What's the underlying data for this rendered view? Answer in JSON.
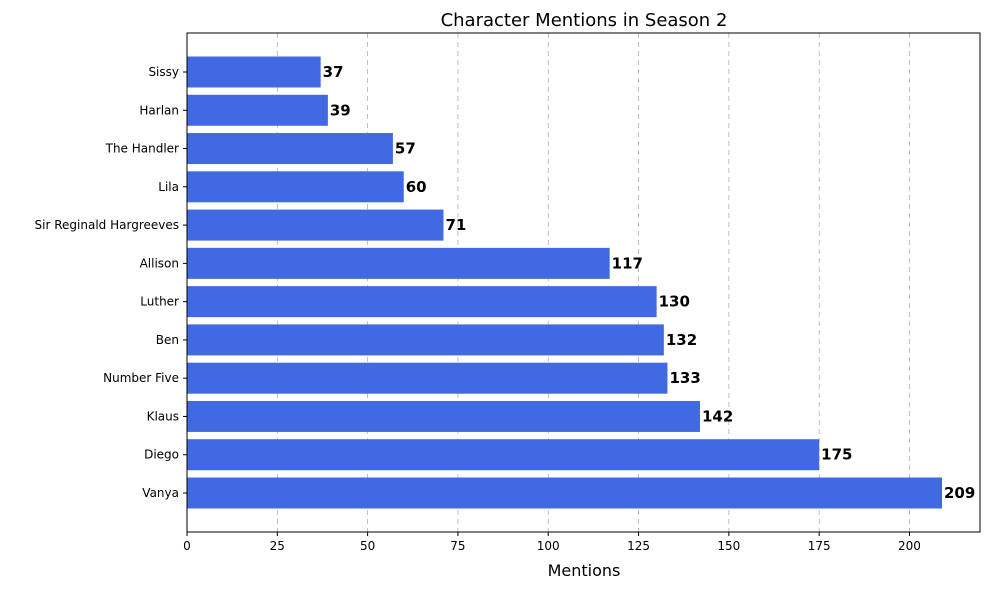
{
  "chart_data": {
    "type": "bar",
    "orientation": "horizontal",
    "title": "Character Mentions in Season 2",
    "xlabel": "Mentions",
    "ylabel": "",
    "categories": [
      "Sissy",
      "Harlan",
      "The Handler",
      "Lila",
      "Sir Reginald Hargreeves",
      "Allison",
      "Luther",
      "Ben",
      "Number Five",
      "Klaus",
      "Diego",
      "Vanya"
    ],
    "values": [
      37,
      39,
      57,
      60,
      71,
      117,
      130,
      132,
      133,
      142,
      175,
      209
    ],
    "xlim": [
      0,
      220
    ],
    "xticks": [
      0,
      25,
      50,
      75,
      100,
      125,
      150,
      175,
      200
    ],
    "grid": "x-dashed",
    "bar_color": "#4169e1",
    "data_labels": true
  }
}
